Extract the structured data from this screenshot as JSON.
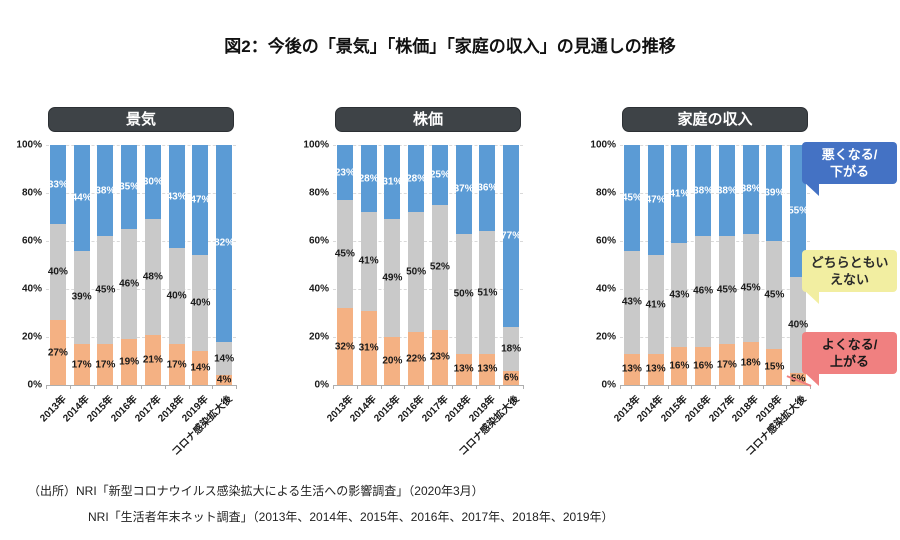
{
  "title": "図2：今後の「景気」「株価」「家庭の収入」の見通しの推移",
  "colors": {
    "bar_negative_blue": "#5b9bd5",
    "bar_neutral_gray": "#c9c9c9",
    "bar_positive_orange": "#f4b183",
    "badge_dark": "#3e4347",
    "callout_blue": "#4472c4",
    "callout_yellow": "#f2eea1",
    "callout_red": "#f08080"
  },
  "chart_data": [
    {
      "type": "bar",
      "stacked": true,
      "title": "景気",
      "categories": [
        "2013年",
        "2014年",
        "2015年",
        "2016年",
        "2017年",
        "2018年",
        "2019年",
        "コロナ感染拡大後"
      ],
      "ylim": [
        0,
        100
      ],
      "yticks": [
        "0%",
        "20%",
        "40%",
        "60%",
        "80%",
        "100%"
      ],
      "grid": "dashed horizontal at 20% steps",
      "series": [
        {
          "name": "よくなる/上がる",
          "color": "#f4b183",
          "values": [
            27,
            17,
            17,
            19,
            21,
            17,
            14,
            4
          ]
        },
        {
          "name": "どちらともいえない",
          "color": "#c9c9c9",
          "values": [
            40,
            39,
            45,
            46,
            48,
            40,
            40,
            14
          ]
        },
        {
          "name": "悪くなる/下がる",
          "color": "#5b9bd5",
          "values": [
            33,
            44,
            38,
            35,
            30,
            43,
            47,
            82
          ]
        }
      ]
    },
    {
      "type": "bar",
      "stacked": true,
      "title": "株価",
      "categories": [
        "2013年",
        "2014年",
        "2015年",
        "2016年",
        "2017年",
        "2018年",
        "2019年",
        "コロナ感染拡大後"
      ],
      "ylim": [
        0,
        100
      ],
      "yticks": [
        "0%",
        "20%",
        "40%",
        "60%",
        "80%",
        "100%"
      ],
      "grid": "dashed horizontal at 20% steps",
      "series": [
        {
          "name": "よくなる/上がる",
          "color": "#f4b183",
          "values": [
            32,
            31,
            20,
            22,
            23,
            13,
            13,
            6
          ]
        },
        {
          "name": "どちらともいえない",
          "color": "#c9c9c9",
          "values": [
            45,
            41,
            49,
            50,
            52,
            50,
            51,
            18
          ]
        },
        {
          "name": "悪くなる/下がる",
          "color": "#5b9bd5",
          "values": [
            23,
            28,
            31,
            28,
            25,
            37,
            36,
            77
          ]
        }
      ]
    },
    {
      "type": "bar",
      "stacked": true,
      "title": "家庭の収入",
      "categories": [
        "2013年",
        "2014年",
        "2015年",
        "2016年",
        "2017年",
        "2018年",
        "2019年",
        "コロナ感染拡大後"
      ],
      "ylim": [
        0,
        100
      ],
      "yticks": [
        "0%",
        "20%",
        "40%",
        "60%",
        "80%",
        "100%"
      ],
      "grid": "dashed horizontal at 20% steps",
      "series": [
        {
          "name": "よくなる/上がる",
          "color": "#f4b183",
          "values": [
            13,
            13,
            16,
            16,
            17,
            18,
            15,
            5
          ]
        },
        {
          "name": "どちらともいえない",
          "color": "#c9c9c9",
          "values": [
            43,
            41,
            43,
            46,
            45,
            45,
            45,
            40
          ]
        },
        {
          "name": "悪くなる/下がる",
          "color": "#5b9bd5",
          "values": [
            45,
            47,
            41,
            38,
            38,
            38,
            39,
            55
          ]
        }
      ]
    }
  ],
  "legend": {
    "negative": {
      "line1": "悪くなる/",
      "line2": "下がる"
    },
    "neutral": {
      "line1": "どちらともい",
      "line2": "えない"
    },
    "positive": {
      "line1": "よくなる/",
      "line2": "上がる"
    }
  },
  "source": {
    "line1": "（出所）NRI「新型コロナウイルス感染拡大による生活への影響調査」（2020年3月）",
    "line2": "NRI「生活者年末ネット調査」（2013年、2014年、2015年、2016年、2017年、2018年、2019年）"
  }
}
